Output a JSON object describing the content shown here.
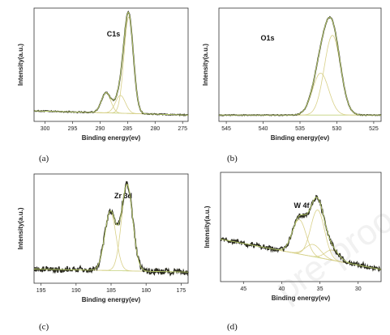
{
  "colors": {
    "raw_curve": "#2b2b20",
    "fit_curve": "#b8cc6a",
    "component": "#d8d088",
    "baseline": "#c4d27c",
    "axis": "#333333"
  },
  "watermark": "pre-proo",
  "chart_data": [
    {
      "type": "line",
      "panel_label": "(a)",
      "peak_label": "C1s",
      "xlabel": "Binding energy(ev)",
      "ylabel": "Intensity(a.u.)",
      "xlim": [
        302,
        274
      ],
      "xticks": [
        300,
        295,
        290,
        285,
        280,
        275
      ],
      "ylim": [
        0,
        1.08
      ],
      "baseline": {
        "x": [
          302,
          274
        ],
        "y": [
          0.1,
          0.06
        ]
      },
      "peaks": [
        {
          "center": 284.8,
          "height": 0.92,
          "width": 0.85
        },
        {
          "center": 286.3,
          "height": 0.17,
          "width": 0.9
        },
        {
          "center": 288.9,
          "height": 0.19,
          "width": 0.85
        }
      ],
      "noise": 0.004
    },
    {
      "type": "line",
      "panel_label": "(b)",
      "peak_label": "O1s",
      "xlabel": "Binding energy(ev)",
      "ylabel": "Intensity(a.u.)",
      "xlim": [
        546,
        524
      ],
      "xticks": [
        545,
        540,
        535,
        530,
        525
      ],
      "ylim": [
        0,
        1.08
      ],
      "baseline": {
        "x": [
          546,
          524
        ],
        "y": [
          0.06,
          0.06
        ]
      },
      "peaks": [
        {
          "center": 530.6,
          "height": 0.76,
          "width": 1.1
        },
        {
          "center": 532.2,
          "height": 0.4,
          "width": 1.1
        }
      ],
      "noise": 0.003
    },
    {
      "type": "line",
      "panel_label": "(c)",
      "peak_label": "Zr 3d",
      "xlabel": "Binding energy(ev)",
      "ylabel": "Intensity(a.u.)",
      "xlim": [
        196,
        174
      ],
      "xticks": [
        195,
        190,
        185,
        180,
        175
      ],
      "ylim": [
        0,
        1.08
      ],
      "baseline": {
        "x": [
          196,
          174
        ],
        "y": [
          0.14,
          0.11
        ]
      },
      "peaks": [
        {
          "center": 185.1,
          "height": 0.58,
          "width": 0.8
        },
        {
          "center": 182.7,
          "height": 0.85,
          "width": 0.8
        }
      ],
      "noise": 0.025
    },
    {
      "type": "line",
      "panel_label": "(d)",
      "peak_label": "W 4f",
      "xlabel": "Binding energy(ev)",
      "ylabel": "Intensity(a.u.)",
      "xlim": [
        48,
        27
      ],
      "xticks": [
        45,
        40,
        35,
        30
      ],
      "ylim": [
        0,
        1.08
      ],
      "baseline": {
        "x": [
          48,
          27
        ],
        "y": [
          0.42,
          0.12
        ]
      },
      "peaks": [
        {
          "center": 37.7,
          "height": 0.34,
          "width": 0.9
        },
        {
          "center": 35.3,
          "height": 0.47,
          "width": 0.9
        },
        {
          "center": 35.9,
          "height": 0.12,
          "width": 1.0
        },
        {
          "center": 33.4,
          "height": 0.1,
          "width": 0.9
        }
      ],
      "noise": 0.02
    }
  ]
}
